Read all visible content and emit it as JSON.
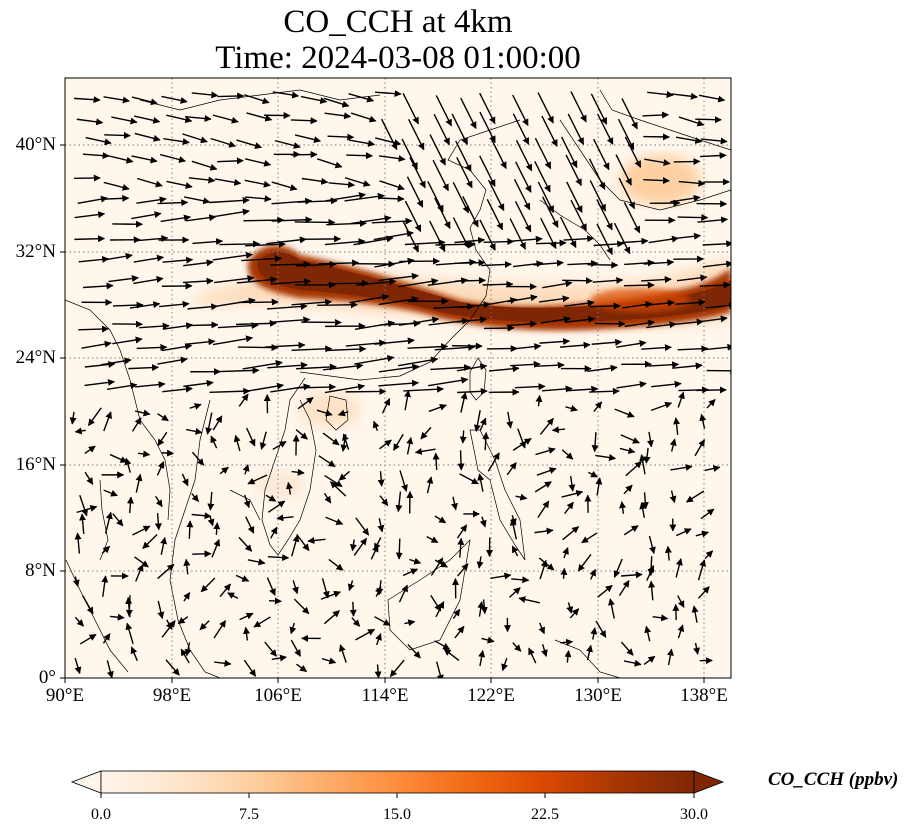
{
  "title": "CO_CCH at 4km",
  "subtitle": "Time: 2024-03-08 01:00:00",
  "lat_labels": [
    "40°N",
    "32°N",
    "24°N",
    "16°N",
    "8°N",
    "0°"
  ],
  "lon_labels": [
    "90°E",
    "98°E",
    "106°E",
    "114°E",
    "122°E",
    "130°E",
    "138°E"
  ],
  "extent": {
    "lon_min": 90,
    "lon_max": 140,
    "lat_min": 0,
    "lat_max": 45
  },
  "colorbar": {
    "label": "CO_CCH (ppbv)",
    "ticks": [
      "0.0",
      "7.5",
      "15.0",
      "22.5",
      "30.0"
    ],
    "min": 0,
    "max": 30,
    "colors": [
      "#fff5eb",
      "#fee6ce",
      "#fdd0a2",
      "#fdae6b",
      "#fd8d3c",
      "#f16913",
      "#d94801",
      "#a63603",
      "#7f2704"
    ]
  },
  "gridlines": "dotted"
}
